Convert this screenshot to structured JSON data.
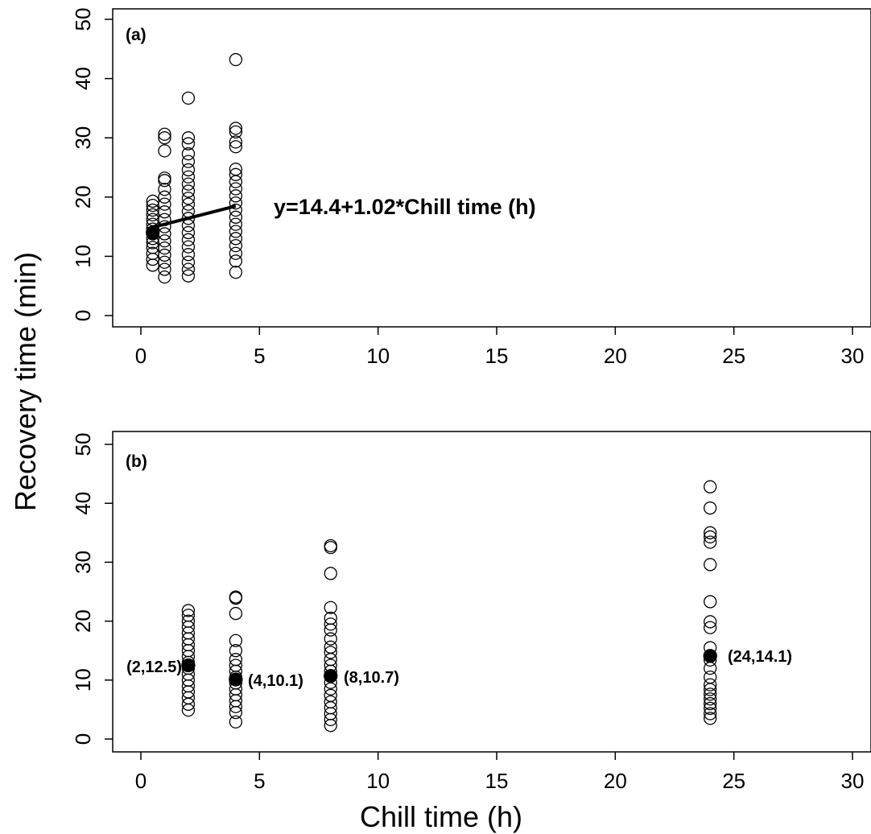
{
  "xlabel": "Chill time (h)",
  "ylabel": "Recovery time (min)",
  "chart_data": [
    {
      "type": "scatter",
      "panel": "(a)",
      "xlim": [
        0,
        30
      ],
      "ylim": [
        0,
        50
      ],
      "xticks": [
        0,
        5,
        10,
        15,
        20,
        25,
        30
      ],
      "yticks": [
        0,
        10,
        20,
        30,
        40,
        50
      ],
      "xlabel": "Chill time (h)",
      "ylabel": "Recovery time (min)",
      "series": [
        {
          "marker": "open-circle",
          "points": [
            [
              0.5,
              8.5
            ],
            [
              0.5,
              9.5
            ],
            [
              0.5,
              10.5
            ],
            [
              0.5,
              11.5
            ],
            [
              0.5,
              12.3
            ],
            [
              0.5,
              13.0
            ],
            [
              0.5,
              13.8
            ],
            [
              0.5,
              14.6
            ],
            [
              0.5,
              15.4
            ],
            [
              0.5,
              16.2
            ],
            [
              0.5,
              17.0
            ],
            [
              0.5,
              17.8
            ],
            [
              0.5,
              18.6
            ],
            [
              0.5,
              19.3
            ],
            [
              1,
              6.5
            ],
            [
              1,
              7.8
            ],
            [
              1,
              9.0
            ],
            [
              1,
              10.2
            ],
            [
              1,
              11.4
            ],
            [
              1,
              12.6
            ],
            [
              1,
              13.8
            ],
            [
              1,
              15.0
            ],
            [
              1,
              16.2
            ],
            [
              1,
              17.5
            ],
            [
              1,
              18.8
            ],
            [
              1,
              20.0
            ],
            [
              1,
              21.3
            ],
            [
              1,
              22.8
            ],
            [
              1,
              23.2
            ],
            [
              1,
              27.8
            ],
            [
              1,
              30.0
            ],
            [
              1,
              30.6
            ],
            [
              2,
              6.7
            ],
            [
              2,
              7.8
            ],
            [
              2,
              9.0
            ],
            [
              2,
              10.3
            ],
            [
              2,
              11.6
            ],
            [
              2,
              12.8
            ],
            [
              2,
              14.0
            ],
            [
              2,
              15.2
            ],
            [
              2,
              16.4
            ],
            [
              2,
              17.6
            ],
            [
              2,
              18.8
            ],
            [
              2,
              19.8
            ],
            [
              2,
              21.0
            ],
            [
              2,
              22.2
            ],
            [
              2,
              23.4
            ],
            [
              2,
              24.6
            ],
            [
              2,
              26.0
            ],
            [
              2,
              27.3
            ],
            [
              2,
              29.0
            ],
            [
              2,
              30.0
            ],
            [
              2,
              36.7
            ],
            [
              4,
              7.3
            ],
            [
              4,
              9.2
            ],
            [
              4,
              10.5
            ],
            [
              4,
              11.8
            ],
            [
              4,
              13.0
            ],
            [
              4,
              14.2
            ],
            [
              4,
              15.4
            ],
            [
              4,
              16.6
            ],
            [
              4,
              17.8
            ],
            [
              4,
              19.0
            ],
            [
              4,
              20.2
            ],
            [
              4,
              21.4
            ],
            [
              4,
              22.6
            ],
            [
              4,
              23.8
            ],
            [
              4,
              24.7
            ],
            [
              4,
              28.5
            ],
            [
              4,
              29.3
            ],
            [
              4,
              31.0
            ],
            [
              4,
              31.6
            ],
            [
              4,
              43.2
            ]
          ]
        },
        {
          "marker": "filled-circle",
          "points": [
            [
              0.5,
              14.0
            ]
          ]
        }
      ],
      "fit": {
        "intercept": 14.4,
        "slope": 1.02,
        "x_range": [
          0.5,
          4
        ]
      },
      "annotations": [
        "y=14.4+1.02*Chill time (h)"
      ]
    },
    {
      "type": "scatter",
      "panel": "(b)",
      "xlim": [
        0,
        30
      ],
      "ylim": [
        0,
        50
      ],
      "xticks": [
        0,
        5,
        10,
        15,
        20,
        25,
        30
      ],
      "yticks": [
        0,
        10,
        20,
        30,
        40,
        50
      ],
      "xlabel": "Chill time (h)",
      "ylabel": "Recovery time (min)",
      "series": [
        {
          "marker": "open-circle",
          "points": [
            [
              2,
              4.9
            ],
            [
              2,
              5.9
            ],
            [
              2,
              7.0
            ],
            [
              2,
              8.0
            ],
            [
              2,
              9.0
            ],
            [
              2,
              10.0
            ],
            [
              2,
              11.0
            ],
            [
              2,
              12.0
            ],
            [
              2,
              13.0
            ],
            [
              2,
              14.0
            ],
            [
              2,
              15.0
            ],
            [
              2,
              16.0
            ],
            [
              2,
              17.0
            ],
            [
              2,
              18.0
            ],
            [
              2,
              19.0
            ],
            [
              2,
              20.0
            ],
            [
              2,
              21.0
            ],
            [
              2,
              21.8
            ],
            [
              4,
              2.9
            ],
            [
              4,
              4.5
            ],
            [
              4,
              5.5
            ],
            [
              4,
              6.5
            ],
            [
              4,
              7.5
            ],
            [
              4,
              8.5
            ],
            [
              4,
              9.5
            ],
            [
              4,
              10.5
            ],
            [
              4,
              11.5
            ],
            [
              4,
              12.5
            ],
            [
              4,
              13.5
            ],
            [
              4,
              15.0
            ],
            [
              4,
              16.7
            ],
            [
              4,
              21.3
            ],
            [
              4,
              23.9
            ],
            [
              4,
              24.1
            ],
            [
              8,
              2.3
            ],
            [
              8,
              3.3
            ],
            [
              8,
              4.3
            ],
            [
              8,
              5.3
            ],
            [
              8,
              6.3
            ],
            [
              8,
              7.4
            ],
            [
              8,
              8.5
            ],
            [
              8,
              9.6
            ],
            [
              8,
              11.5
            ],
            [
              8,
              12.5
            ],
            [
              8,
              13.5
            ],
            [
              8,
              14.7
            ],
            [
              8,
              15.6
            ],
            [
              8,
              17.0
            ],
            [
              8,
              18.5
            ],
            [
              8,
              19.5
            ],
            [
              8,
              20.5
            ],
            [
              8,
              22.3
            ],
            [
              8,
              28.1
            ],
            [
              8,
              32.5
            ],
            [
              8,
              32.8
            ],
            [
              24,
              3.5
            ],
            [
              24,
              4.3
            ],
            [
              24,
              5.2
            ],
            [
              24,
              6.0
            ],
            [
              24,
              6.8
            ],
            [
              24,
              7.6
            ],
            [
              24,
              8.4
            ],
            [
              24,
              9.2
            ],
            [
              24,
              10.5
            ],
            [
              24,
              12.0
            ],
            [
              24,
              13.4
            ],
            [
              24,
              15.5
            ],
            [
              24,
              18.9
            ],
            [
              24,
              19.9
            ],
            [
              24,
              23.3
            ],
            [
              24,
              29.6
            ],
            [
              24,
              33.4
            ],
            [
              24,
              34.3
            ],
            [
              24,
              35.0
            ],
            [
              24,
              39.2
            ],
            [
              24,
              42.8
            ]
          ]
        },
        {
          "marker": "filled-circle",
          "points": [
            [
              2,
              12.5
            ],
            [
              4,
              10.1
            ],
            [
              8,
              10.7
            ],
            [
              24,
              14.1
            ]
          ]
        }
      ],
      "annotations": [
        "(2,12.5)",
        "(4,10.1)",
        "(8,10.7)",
        "(24,14.1)"
      ]
    }
  ]
}
